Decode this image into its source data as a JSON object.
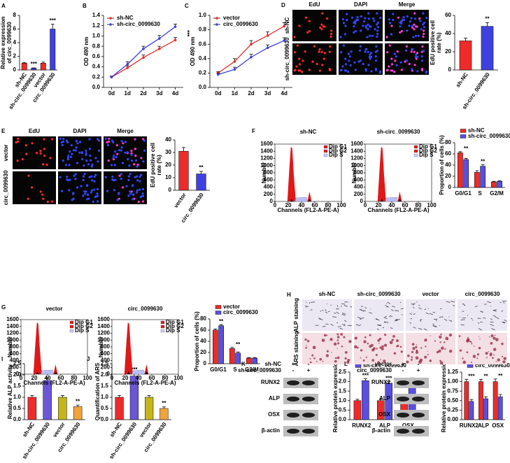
{
  "chart_data": [
    {
      "label": "A",
      "type": "bar",
      "y_label": [
        "Relative expression",
        "of circ_0099630"
      ],
      "categories": [
        "sh-NC",
        "sh-circ_0099630",
        "vector",
        "circ_0099630"
      ],
      "values": [
        1,
        0.25,
        1,
        6
      ],
      "errors": [
        0.1,
        0.05,
        0.15,
        0.7
      ],
      "colors": [
        "#ee2b2b",
        "#4040e0",
        "#ee2b2b",
        "#4040e0"
      ],
      "ylim": [
        0,
        8
      ],
      "yticks": [
        0,
        2,
        4,
        6,
        8
      ],
      "annotations": [
        null,
        "***",
        null,
        "***"
      ]
    },
    {
      "label": "B",
      "type": "line",
      "y_label": "OD 490 nm",
      "categories": [
        "0d",
        "1d",
        "2d",
        "3d",
        "4d"
      ],
      "series": [
        {
          "name": "sh-NC",
          "color": "#ee2b2b",
          "values": [
            0.2,
            0.38,
            0.58,
            0.75,
            0.92
          ],
          "errors": [
            0.02,
            0.04,
            0.05,
            0.05,
            0.05
          ]
        },
        {
          "name": "sh-circ_0099630",
          "color": "#4040e0",
          "values": [
            0.2,
            0.45,
            0.75,
            0.95,
            1.18
          ],
          "errors": [
            0.02,
            0.05,
            0.05,
            0.06,
            0.05
          ]
        }
      ],
      "ylim": [
        0,
        1.4
      ],
      "yticks": [
        {
          "value": 0,
          "label": "0.0"
        },
        0.2,
        0.4,
        0.6,
        0.8,
        {
          "value": 1,
          "label": "1.0"
        },
        1.2,
        1.4
      ],
      "annotations": [
        "***"
      ],
      "legend": "top-left"
    },
    {
      "label": "C",
      "type": "line",
      "y_label": "OD 490 nm",
      "categories": [
        "0d",
        "1d",
        "2d",
        "3d",
        "4d"
      ],
      "series": [
        {
          "name": "vector",
          "color": "#ee2b2b",
          "values": [
            0.2,
            0.36,
            0.6,
            0.72,
            0.85
          ],
          "errors": [
            0.02,
            0.04,
            0.05,
            0.05,
            0.05
          ]
        },
        {
          "name": "circ_0099630",
          "color": "#4040e0",
          "values": [
            0.18,
            0.25,
            0.42,
            0.55,
            0.65
          ],
          "errors": [
            0.02,
            0.03,
            0.04,
            0.04,
            0.04
          ]
        }
      ],
      "ylim": [
        0,
        1
      ],
      "yticks": [
        {
          "value": 0,
          "label": "0.0"
        },
        0.2,
        0.4,
        0.6,
        0.8,
        {
          "value": 1,
          "label": "1.0"
        }
      ],
      "annotations": [
        "***"
      ],
      "legend": "top-left"
    },
    {
      "type": "bar",
      "y_label": [
        "EdU positive cell",
        "rate (%)"
      ],
      "categories": [
        "sh-NC",
        "sh-circ_0099630"
      ],
      "values": [
        32,
        48
      ],
      "errors": [
        3,
        4
      ],
      "colors": [
        "#ee2b2b",
        "#4040e0"
      ],
      "ylim": [
        0,
        60
      ],
      "yticks": [
        0,
        20,
        40,
        60
      ],
      "annotations": [
        null,
        "**"
      ]
    },
    {
      "type": "bar",
      "y_label": [
        "EdU positive cell",
        "rate (%)"
      ],
      "categories": [
        "vector",
        "circ_0099630"
      ],
      "values": [
        31,
        13
      ],
      "errors": [
        3,
        2
      ],
      "colors": [
        "#ee2b2b",
        "#4040e0"
      ],
      "ylim": [
        0,
        40
      ],
      "yticks": [
        0,
        10,
        20,
        30,
        40
      ],
      "annotations": [
        null,
        "**"
      ]
    },
    {
      "type": "grouped_bar",
      "y_label": "Proportion of cells (%)",
      "categories": [
        "G0/G1",
        "S",
        "G2/M"
      ],
      "series": [
        {
          "name": "sh-NC",
          "color": "#ee2b2b",
          "values": [
            62,
            27,
            10
          ],
          "errors": [
            2,
            3,
            1
          ]
        },
        {
          "name": "sh-circ_0099630",
          "color": "#5a4fe0",
          "values": [
            50,
            38,
            11
          ],
          "errors": [
            2,
            3,
            1
          ]
        }
      ],
      "ylim": [
        0,
        80
      ],
      "yticks": [
        0,
        20,
        40,
        60,
        80
      ],
      "annotations": [
        "**",
        "**",
        null
      ],
      "legend": "top"
    },
    {
      "type": "grouped_bar",
      "y_label": "Proportion of cells (%)",
      "categories": [
        "G0/G1",
        "S",
        "G2/M"
      ],
      "series": [
        {
          "name": "vector",
          "color": "#ee2b2b",
          "values": [
            60,
            27,
            10
          ],
          "errors": [
            2,
            2,
            1
          ]
        },
        {
          "name": "circ_0099630",
          "color": "#5a4fe0",
          "values": [
            68,
            19,
            10
          ],
          "errors": [
            2,
            2,
            1
          ]
        }
      ],
      "ylim": [
        0,
        80
      ],
      "yticks": [
        0,
        20,
        40,
        60,
        80
      ],
      "annotations": [
        "**",
        "**",
        null
      ],
      "legend": "top"
    },
    {
      "label": "I",
      "type": "bar",
      "y_label": "Relative ALP activity",
      "categories": [
        "sh-NC",
        "sh-circ_0099630",
        "vector",
        "circ_0099630"
      ],
      "values": [
        1,
        1.75,
        1,
        0.58
      ],
      "errors": [
        0.08,
        0.12,
        0.08,
        0.07
      ],
      "colors": [
        "#ee2b2b",
        "#6b56d8",
        "#c4b61a",
        "#f2a43a"
      ],
      "ylim": [
        0,
        2.5
      ],
      "yticks": [
        {
          "value": 0,
          "label": "0.0"
        },
        0.5,
        {
          "value": 1,
          "label": "1.0"
        },
        1.5,
        {
          "value": 2,
          "label": "2.0"
        },
        2.5
      ],
      "annotations": [
        null,
        "***",
        null,
        "**"
      ]
    },
    {
      "label": "J",
      "type": "bar",
      "y_label": "Quantification of ARS",
      "categories": [
        "sh-NC",
        "sh-circ_0099630",
        "vector",
        "circ_0099630"
      ],
      "values": [
        1,
        1.95,
        1,
        0.5
      ],
      "errors": [
        0.08,
        0.12,
        0.08,
        0.07
      ],
      "colors": [
        "#ee2b2b",
        "#6b56d8",
        "#c4b61a",
        "#f2a43a"
      ],
      "ylim": [
        0,
        2.5
      ],
      "yticks": [
        {
          "value": 0,
          "label": "0.0"
        },
        0.5,
        {
          "value": 1,
          "label": "1.0"
        },
        1.5,
        {
          "value": 2,
          "label": "2.0"
        },
        2.5
      ],
      "annotations": [
        null,
        "***",
        null,
        "**"
      ]
    },
    {
      "type": "grouped_bar",
      "y_label": "Relative protein expression",
      "categories": [
        "RUNX2",
        "ALP",
        "OSX"
      ],
      "series": [
        {
          "name": "sh-NC",
          "color": "#ee2b2b",
          "values": [
            1,
            1,
            1
          ],
          "errors": [
            0.07,
            0.08,
            0.06
          ]
        },
        {
          "name": "sh-circ_0099630",
          "color": "#5a4fe0",
          "values": [
            2.05,
            1.92,
            1.82
          ],
          "errors": [
            0.1,
            0.08,
            0.12
          ]
        }
      ],
      "ylim": [
        0,
        2.5
      ],
      "yticks": [
        {
          "value": 0,
          "label": "0.0"
        },
        0.5,
        {
          "value": 1,
          "label": "1.0"
        },
        1.5,
        {
          "value": 2,
          "label": "2.0"
        },
        2.5
      ],
      "annotations": [
        "***",
        "***",
        "**"
      ],
      "legend": "top"
    },
    {
      "type": "grouped_bar",
      "y_label": "Relative protein expression",
      "categories": [
        "RUNX2",
        "ALP",
        "OSX"
      ],
      "series": [
        {
          "name": "vector",
          "color": "#ee2b2b",
          "values": [
            1,
            1,
            1
          ],
          "errors": [
            0.06,
            0.06,
            0.07
          ]
        },
        {
          "name": "circ_0099630",
          "color": "#5a4fe0",
          "values": [
            0.48,
            0.55,
            0.6
          ],
          "errors": [
            0.05,
            0.05,
            0.06
          ]
        }
      ],
      "ylim": [
        0,
        1.25
      ],
      "yticks": [
        {
          "value": 0,
          "label": "0.00"
        },
        0.25,
        {
          "value": 0.5,
          "label": "0.50"
        },
        0.75,
        {
          "value": 1,
          "label": "1.00"
        },
        1.25
      ],
      "annotations": [
        "***",
        "**",
        "**"
      ],
      "legend": "top"
    }
  ],
  "edu_panels": [
    {
      "label": "D",
      "columns": [
        "EdU",
        "DAPI",
        "Merge"
      ],
      "rows": [
        "sh-NC",
        "sh-circ_0099630"
      ]
    },
    {
      "label": "E",
      "columns": [
        "EdU",
        "DAPI",
        "Merge"
      ],
      "rows": [
        "vector",
        "circ_0099630"
      ]
    }
  ],
  "flow_panels": [
    {
      "label": "F",
      "histograms": [
        "sh-NC",
        "sh-circ_0099630"
      ],
      "x_label": "Channels (FL2-A-PE-A)",
      "y_label": "Number",
      "legend": [
        "Dip G1",
        "Dip G2",
        "Dip S"
      ],
      "xticks": [
        0,
        20,
        40,
        60,
        80,
        100
      ],
      "yticks": [
        0,
        200,
        400,
        600,
        800,
        1000,
        1200,
        1400,
        1600
      ]
    },
    {
      "label": "G",
      "histograms": [
        "vector",
        "circ_0099630"
      ],
      "x_label": "Channels (FL2-A-PE-A)",
      "y_label": "Number",
      "legend": [
        "Dip G1",
        "Dip G2",
        "Dip S"
      ],
      "xticks": [
        0,
        20,
        40,
        60,
        80,
        100
      ],
      "yticks": [
        0,
        200,
        400,
        600,
        800,
        1000,
        1200,
        1400,
        1600
      ]
    }
  ],
  "staining_panel": {
    "label": "H",
    "columns": [
      "sh-NC",
      "sh-circ_0099630",
      "vector",
      "circ_0099630"
    ],
    "rows": [
      "ALP staining",
      "ARS staining"
    ]
  },
  "blot_panels": [
    {
      "label": "K",
      "conditions": [
        {
          "name": "sh-NC",
          "signs": [
            "+",
            "-"
          ]
        },
        {
          "name": "sh-circ_0099630",
          "signs": [
            "-",
            "+"
          ]
        }
      ],
      "proteins": [
        "RUNX2",
        "ALP",
        "OSX",
        "β-actin"
      ]
    },
    {
      "label": "L",
      "conditions": [
        {
          "name": "vector",
          "signs": [
            "+",
            "-"
          ]
        },
        {
          "name": "circ_0099630",
          "signs": [
            "-",
            "+"
          ]
        }
      ],
      "proteins": [
        "RUNX2",
        "ALP",
        "OSX",
        "β-actin"
      ]
    }
  ]
}
